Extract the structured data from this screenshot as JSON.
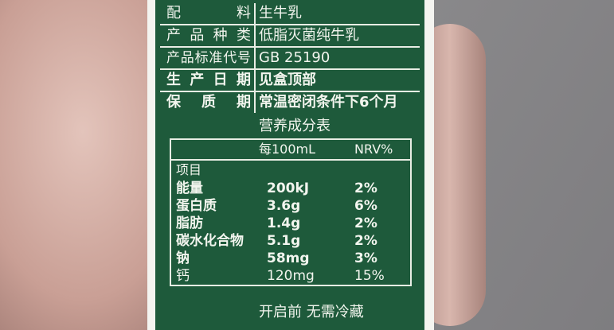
{
  "info_rows": [
    {
      "label": "配料",
      "value": "生牛乳"
    },
    {
      "label": "产品种类",
      "value": "低脂灭菌纯牛乳"
    },
    {
      "label": "产品标准代号",
      "value": "GB 25190"
    },
    {
      "label": "生产日期",
      "value": "见盒顶部"
    },
    {
      "label": "保质期",
      "value": "常温密闭条件下6个月"
    }
  ],
  "nutrition": {
    "title": "营养成分表",
    "headers": {
      "item": "项目",
      "per": "每100mL",
      "nrv": "NRV%"
    },
    "rows": [
      {
        "item": "能量",
        "amount": "200kJ",
        "nrv": "2%"
      },
      {
        "item": "蛋白质",
        "amount": "3.6g",
        "nrv": "6%"
      },
      {
        "item": "脂肪",
        "amount": "1.4g",
        "nrv": "2%"
      },
      {
        "item": "碳水化合物",
        "amount": "5.1g",
        "nrv": "2%"
      },
      {
        "item": "钠",
        "amount": "58mg",
        "nrv": "3%"
      },
      {
        "item": "钙",
        "amount": "120mg",
        "nrv": "15%"
      }
    ]
  },
  "footer_text": "开启前 无需冷藏",
  "colors": {
    "carton_green": "#1e5a3b",
    "text": "#f2f5ee"
  }
}
